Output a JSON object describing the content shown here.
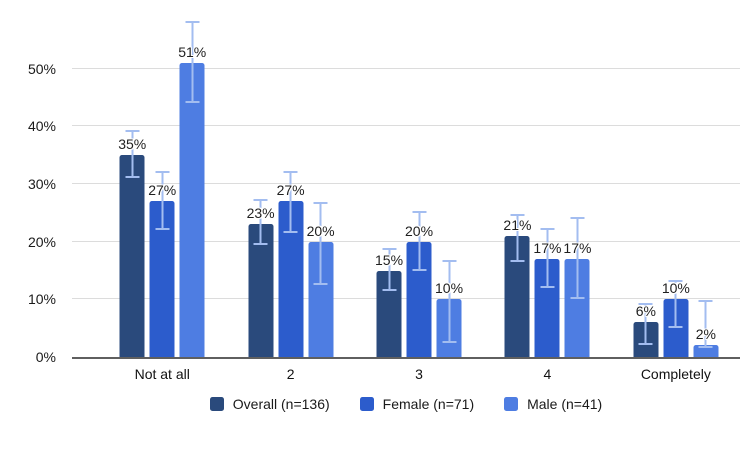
{
  "chart_data": {
    "type": "bar",
    "title": "",
    "categories": [
      "Not at all",
      "2",
      "3",
      "4",
      "Completely"
    ],
    "series": [
      {
        "name": "Overall (n=136)",
        "color": "#2a4a7c",
        "values": [
          35,
          23,
          15,
          21,
          6
        ],
        "labels": [
          "35%",
          "23%",
          "15%",
          "21%",
          "6%"
        ],
        "error_bars": [
          [
            31,
            39
          ],
          [
            19.5,
            27
          ],
          [
            11.5,
            18.5
          ],
          [
            16.5,
            24.5
          ],
          [
            2,
            9
          ]
        ]
      },
      {
        "name": "Female (n=71)",
        "color": "#2c5ccc",
        "values": [
          27,
          27,
          20,
          17,
          10
        ],
        "labels": [
          "27%",
          "27%",
          "20%",
          "17%",
          "10%"
        ],
        "error_bars": [
          [
            22,
            32
          ],
          [
            21.5,
            32
          ],
          [
            15,
            25
          ],
          [
            12,
            22
          ],
          [
            5,
            13
          ]
        ]
      },
      {
        "name": "Male (n=41)",
        "color": "#4e7de2",
        "values": [
          51,
          20,
          10,
          17,
          2
        ],
        "labels": [
          "51%",
          "20%",
          "10%",
          "17%",
          "2%"
        ],
        "error_bars": [
          [
            44,
            58
          ],
          [
            12.5,
            26.5
          ],
          [
            2.5,
            16.5
          ],
          [
            10,
            24
          ],
          [
            1.5,
            9.5
          ]
        ]
      }
    ],
    "y_ticks": [
      "0%",
      "10%",
      "20%",
      "30%",
      "40%",
      "50%"
    ],
    "y_tick_values": [
      0,
      10,
      20,
      30,
      40,
      50
    ],
    "ylim": [
      0,
      59.5
    ],
    "xlabel": "",
    "ylabel": "",
    "grid": true,
    "legend_position": "bottom",
    "error_bar_color": "#a3bdf0",
    "axis_line_color": "#5f5f5f",
    "gridline_color": "#dcdcdc"
  }
}
